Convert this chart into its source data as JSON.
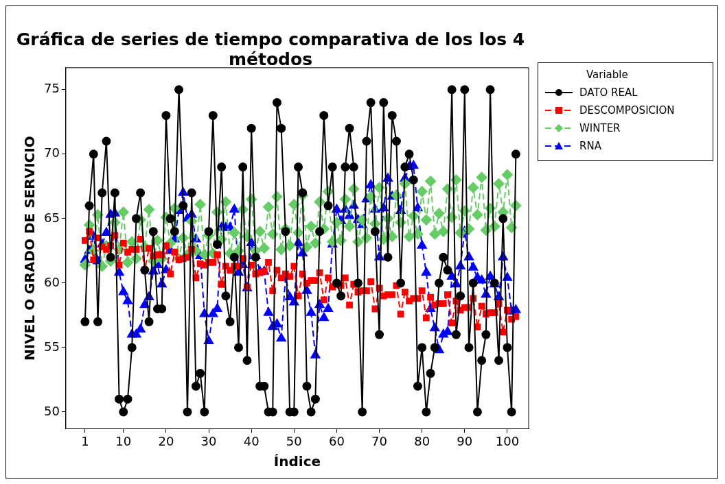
{
  "chart_data": {
    "type": "line",
    "title": "Gráfica de series de tiempo comparativa de los los 4 métodos",
    "xlabel": "Índice",
    "ylabel": "NIVEL O GRADO DE SERVICIO",
    "legend_title": "Variable",
    "legend": "right",
    "grid": false,
    "x": [
      1,
      2,
      3,
      4,
      5,
      6,
      7,
      8,
      9,
      10,
      11,
      12,
      13,
      14,
      15,
      16,
      17,
      18,
      19,
      20,
      21,
      22,
      23,
      24,
      25,
      26,
      27,
      28,
      29,
      30,
      31,
      32,
      33,
      34,
      35,
      36,
      37,
      38,
      39,
      40,
      41,
      42,
      43,
      44,
      45,
      46,
      47,
      48,
      49,
      50,
      51,
      52,
      53,
      54,
      55,
      56,
      57,
      58,
      59,
      60,
      61,
      62,
      63,
      64,
      65,
      66,
      67,
      68,
      69,
      70,
      71,
      72,
      73,
      74,
      75,
      76,
      77,
      78,
      79,
      80,
      81,
      82,
      83,
      84,
      85,
      86,
      87,
      88,
      89,
      90,
      91,
      92,
      93,
      94,
      95,
      96,
      97,
      98,
      99,
      100,
      101,
      102
    ],
    "xlim": [
      -3.5,
      105
    ],
    "xticks": [
      1,
      10,
      20,
      30,
      40,
      50,
      60,
      70,
      80,
      90,
      100
    ],
    "ylim": [
      48.7,
      76.7
    ],
    "yticks": [
      50,
      55,
      60,
      65,
      70,
      75
    ],
    "series": [
      {
        "name": "DATO REAL",
        "color": "#000000",
        "marker": "circle",
        "line_style": "solid",
        "values": [
          57,
          66,
          70,
          57,
          67,
          71,
          62,
          67,
          51,
          50,
          51,
          55,
          65,
          67,
          61,
          57,
          64,
          58,
          58,
          73,
          65,
          64,
          75,
          66,
          50,
          67,
          52,
          53,
          50,
          64,
          73,
          63,
          69,
          59,
          57,
          62,
          55,
          69,
          54,
          72,
          62,
          52,
          52,
          50,
          50,
          74,
          72,
          64,
          50,
          50,
          69,
          67,
          52,
          50,
          51,
          64,
          73,
          66,
          69,
          60,
          59,
          69,
          72,
          69,
          60,
          50,
          71,
          74,
          64,
          56,
          74,
          62,
          73,
          71,
          60,
          69,
          70,
          68,
          52,
          55,
          50,
          53,
          55,
          60,
          62,
          61,
          75,
          56,
          59,
          75,
          55,
          60,
          50,
          54,
          56,
          75,
          60,
          54,
          65,
          55,
          50,
          70
        ]
      },
      {
        "name": "DESCOMPOSICION",
        "color": "#ff0000",
        "marker": "square",
        "line_style": "dashed",
        "values": [
          63.3,
          64.0,
          61.8,
          63.5,
          62.8,
          62.6,
          62.9,
          63.7,
          61.4,
          63.1,
          62.4,
          62.6,
          62.6,
          63.4,
          61.0,
          62.7,
          62.1,
          62.2,
          62.2,
          62.9,
          60.7,
          62.4,
          61.8,
          61.9,
          62.0,
          62.6,
          60.4,
          61.5,
          61.4,
          61.6,
          61.6,
          62.2,
          59.9,
          61.3,
          61.0,
          61.3,
          61.3,
          61.9,
          59.7,
          61.4,
          60.7,
          60.8,
          60.9,
          61.6,
          59.4,
          61.0,
          60.4,
          60.7,
          60.5,
          61.3,
          59.0,
          60.7,
          60.0,
          60.2,
          60.2,
          60.8,
          58.7,
          60.4,
          59.7,
          59.9,
          59.8,
          60.4,
          58.3,
          59.9,
          59.3,
          59.4,
          59.4,
          60.1,
          58.0,
          59.6,
          59.0,
          59.1,
          59.1,
          59.8,
          57.6,
          59.3,
          58.6,
          58.8,
          58.8,
          59.4,
          57.3,
          58.9,
          58.3,
          58.4,
          58.4,
          59.1,
          56.9,
          58.6,
          57.9,
          58.1,
          58.1,
          58.8,
          56.6,
          58.2,
          57.6,
          57.7,
          57.7,
          58.4,
          56.2,
          57.9,
          57.2,
          57.4
        ]
      },
      {
        "name": "WINTER",
        "color": "#66cc66",
        "marker": "diamond",
        "line_style": "dashed",
        "values": [
          61.4,
          64.5,
          62.5,
          65.3,
          61.3,
          62.9,
          61.7,
          64.7,
          62.6,
          65.5,
          61.6,
          63.2,
          61.9,
          64.9,
          62.8,
          65.7,
          61.7,
          63.3,
          61.9,
          65.1,
          63.1,
          65.8,
          61.9,
          63.5,
          62.2,
          64.8,
          62.5,
          66.1,
          62.2,
          63.7,
          62.3,
          65.5,
          63.4,
          66.3,
          62.3,
          63.9,
          62.5,
          65.7,
          63.6,
          66.5,
          62.5,
          64.0,
          62.7,
          65.9,
          63.8,
          66.7,
          62.6,
          64.2,
          62.9,
          66.1,
          63.9,
          66.8,
          62.8,
          64.4,
          63.1,
          66.3,
          64.2,
          67.1,
          63.2,
          64.7,
          63.3,
          66.5,
          64.4,
          67.3,
          63.2,
          64.9,
          63.5,
          66.7,
          64.6,
          67.4,
          63.4,
          65.0,
          63.6,
          66.8,
          64.7,
          67.7,
          63.6,
          65.2,
          63.8,
          67.1,
          64.9,
          67.9,
          63.8,
          65.4,
          64.0,
          67.3,
          65.1,
          68.0,
          63.9,
          65.6,
          64.2,
          67.4,
          65.3,
          68.2,
          64.1,
          65.8,
          64.4,
          67.7,
          65.5,
          68.4,
          64.3,
          66.0
        ]
      },
      {
        "name": "RNA",
        "color": "#0000ff",
        "marker": "triangle",
        "line_style": "dashed",
        "values": [
          61.8,
          62.5,
          63.6,
          61.7,
          63.0,
          63.9,
          65.3,
          65.4,
          60.8,
          59.3,
          58.6,
          56.0,
          56.0,
          56.4,
          58.3,
          58.9,
          60.9,
          61.4,
          59.9,
          61.0,
          62.5,
          63.4,
          65.6,
          67.0,
          65.0,
          65.3,
          63.4,
          62.1,
          57.6,
          55.5,
          57.6,
          58.0,
          64.3,
          64.3,
          64.3,
          65.7,
          60.8,
          61.4,
          59.6,
          63.1,
          62.1,
          60.9,
          60.9,
          57.7,
          56.6,
          56.8,
          55.7,
          60.5,
          58.9,
          58.5,
          63.1,
          62.3,
          59.4,
          57.7,
          54.4,
          58.3,
          57.3,
          58.0,
          63.0,
          65.7,
          64.8,
          65.7,
          65.2,
          66.0,
          64.9,
          64.5,
          66.5,
          67.6,
          65.7,
          62.0,
          65.8,
          68.1,
          66.7,
          66.8,
          65.6,
          68.1,
          69.0,
          69.1,
          65.8,
          62.9,
          60.8,
          58.0,
          56.5,
          54.8,
          56.0,
          56.2,
          60.5,
          59.9,
          61.3,
          64.0,
          62.0,
          61.2,
          60.4,
          60.2,
          59.1,
          60.5,
          59.9,
          58.9,
          62.0,
          60.4,
          57.8,
          57.9
        ]
      }
    ]
  }
}
